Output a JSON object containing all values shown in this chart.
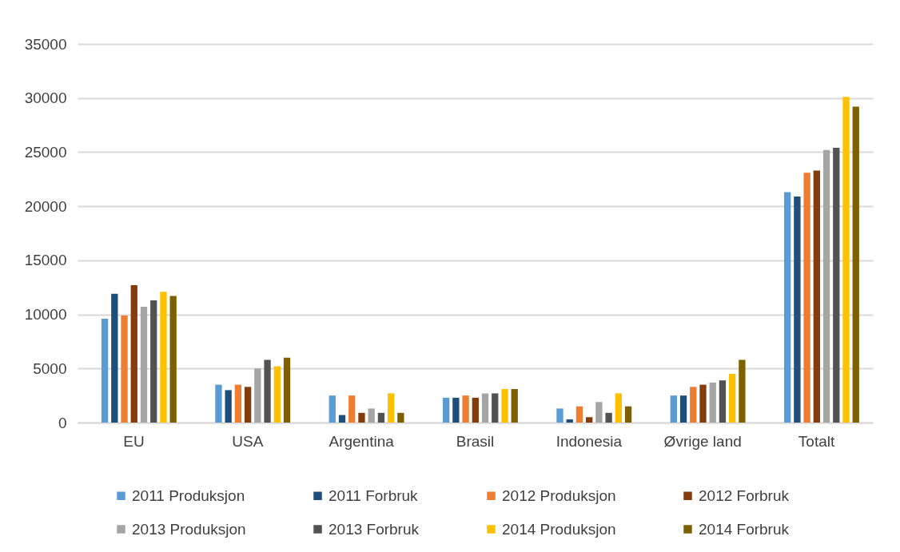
{
  "chart_data": {
    "type": "bar",
    "categories": [
      "EU",
      "USA",
      "Argentina",
      "Brasil",
      "Indonesia",
      "Øvrige land",
      "Totalt"
    ],
    "series": [
      {
        "name": "2011 Produksjon",
        "color": "#5b9bd5",
        "values": [
          9600,
          3500,
          2500,
          2300,
          1300,
          2500,
          21300
        ]
      },
      {
        "name": "2011 Forbruk",
        "color": "#1f4e79",
        "values": [
          11900,
          3000,
          700,
          2300,
          300,
          2500,
          20900
        ]
      },
      {
        "name": "2012 Produksjon",
        "color": "#ed7d31",
        "values": [
          9900,
          3500,
          2500,
          2500,
          1500,
          3300,
          23100
        ]
      },
      {
        "name": "2012 Forbruk",
        "color": "#843c0c",
        "values": [
          12700,
          3300,
          900,
          2300,
          500,
          3500,
          23300
        ]
      },
      {
        "name": "2013 Produksjon",
        "color": "#a5a5a5",
        "values": [
          10700,
          5000,
          1300,
          2700,
          1900,
          3700,
          25200
        ]
      },
      {
        "name": "2013 Forbruk",
        "color": "#525252",
        "values": [
          11300,
          5800,
          900,
          2700,
          900,
          3900,
          25400
        ]
      },
      {
        "name": "2014 Produksjon",
        "color": "#ffc000",
        "values": [
          12100,
          5200,
          2700,
          3100,
          2700,
          4500,
          30100
        ]
      },
      {
        "name": "2014 Forbruk",
        "color": "#7f6000",
        "values": [
          11700,
          6000,
          900,
          3100,
          1500,
          5800,
          29200
        ]
      }
    ],
    "ylim": [
      0,
      35000
    ],
    "yticks": [
      0,
      5000,
      10000,
      15000,
      20000,
      25000,
      30000,
      35000
    ],
    "grid": "y",
    "legend": "bottom"
  }
}
